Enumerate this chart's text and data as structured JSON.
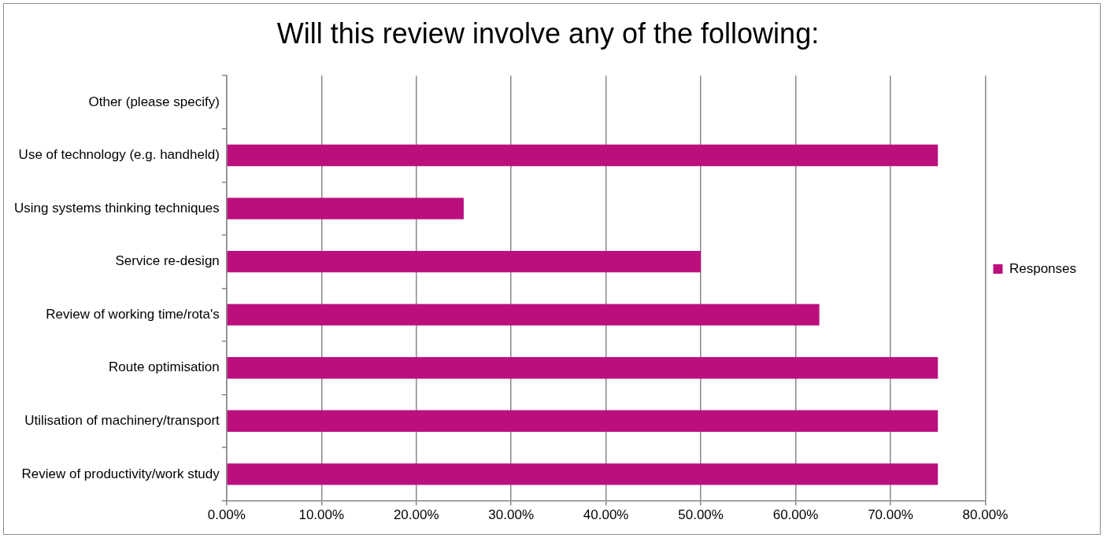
{
  "chart_data": {
    "type": "bar",
    "orientation": "horizontal",
    "title": "Will this review involve any of the following:",
    "categories": [
      "Other (please specify)",
      "Use of technology (e.g. handheld)",
      "Using systems thinking techniques",
      "Service re-design",
      "Review of working time/rota's",
      "Route optimisation",
      "Utilisation of machinery/transport",
      "Review of productivity/work study"
    ],
    "series": [
      {
        "name": "Responses",
        "color": "#bb0f7e",
        "values": [
          0,
          75,
          25,
          50,
          62.5,
          75,
          75,
          75
        ]
      }
    ],
    "xlim": [
      0,
      80
    ],
    "xticks": [
      {
        "value": 0,
        "label": "0.00%"
      },
      {
        "value": 10,
        "label": "10.00%"
      },
      {
        "value": 20,
        "label": "20.00%"
      },
      {
        "value": 30,
        "label": "30.00%"
      },
      {
        "value": 40,
        "label": "40.00%"
      },
      {
        "value": 50,
        "label": "50.00%"
      },
      {
        "value": 60,
        "label": "60.00%"
      },
      {
        "value": 70,
        "label": "70.00%"
      },
      {
        "value": 80,
        "label": "80.00%"
      }
    ],
    "grid": "x",
    "legend": "right"
  }
}
